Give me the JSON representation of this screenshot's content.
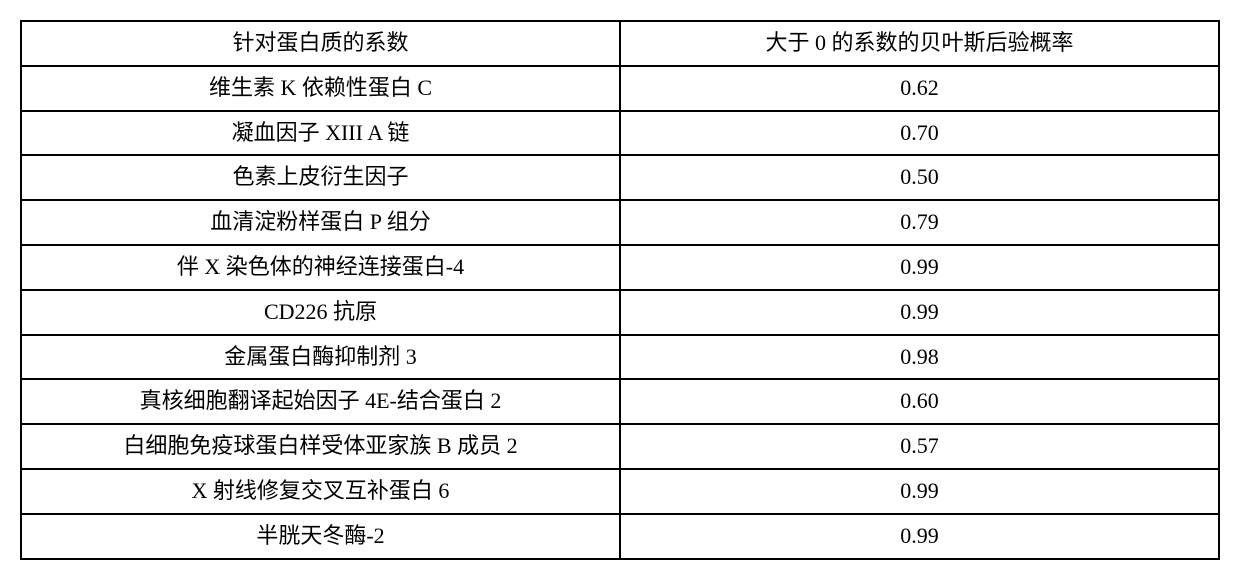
{
  "table": {
    "columns": [
      "针对蛋白质的系数",
      "大于 0 的系数的贝叶斯后验概率"
    ],
    "rows": [
      [
        "维生素 K 依赖性蛋白 C",
        "0.62"
      ],
      [
        "凝血因子 XIII A 链",
        "0.70"
      ],
      [
        "色素上皮衍生因子",
        "0.50"
      ],
      [
        "血清淀粉样蛋白 P 组分",
        "0.79"
      ],
      [
        "伴 X 染色体的神经连接蛋白-4",
        "0.99"
      ],
      [
        "CD226 抗原",
        "0.99"
      ],
      [
        "金属蛋白酶抑制剂 3",
        "0.98"
      ],
      [
        "真核细胞翻译起始因子 4E-结合蛋白 2",
        "0.60"
      ],
      [
        "白细胞免疫球蛋白样受体亚家族 B 成员 2",
        "0.57"
      ],
      [
        "X 射线修复交叉互补蛋白 6",
        "0.99"
      ],
      [
        "半胱天冬酶-2",
        "0.99"
      ]
    ],
    "border_color": "#000000",
    "background_color": "#ffffff",
    "font_size": 22,
    "cell_padding": 6,
    "border_width": 2,
    "text_align": "center"
  }
}
